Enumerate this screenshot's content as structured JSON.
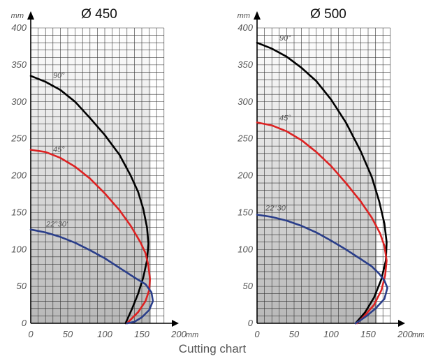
{
  "caption": "Cutting chart",
  "chart_data": [
    {
      "type": "line",
      "title": "Ø 450",
      "x_unit": "mm",
      "y_unit": "mm",
      "xlim": [
        0,
        200
      ],
      "ylim": [
        0,
        400
      ],
      "x_ticks": [
        "0",
        "50",
        "100",
        "150",
        "200"
      ],
      "y_ticks": [
        "0",
        "50",
        "100",
        "150",
        "200",
        "250",
        "300",
        "350",
        "400"
      ],
      "grid": true,
      "series": [
        {
          "name": "90°",
          "color": "#000000",
          "points": [
            [
              0,
              335
            ],
            [
              20,
              327
            ],
            [
              40,
              316
            ],
            [
              60,
              300
            ],
            [
              80,
              278
            ],
            [
              100,
              255
            ],
            [
              120,
              228
            ],
            [
              135,
              200
            ],
            [
              145,
              178
            ],
            [
              152,
              155
            ],
            [
              157,
              130
            ],
            [
              159,
              108
            ],
            [
              157,
              85
            ],
            [
              152,
              62
            ],
            [
              145,
              40
            ],
            [
              137,
              20
            ],
            [
              128,
              0
            ]
          ]
        },
        {
          "name": "45°",
          "color": "#dd2222",
          "points": [
            [
              0,
              235
            ],
            [
              20,
              232
            ],
            [
              40,
              224
            ],
            [
              60,
              212
            ],
            [
              80,
              196
            ],
            [
              100,
              176
            ],
            [
              120,
              153
            ],
            [
              135,
              132
            ],
            [
              148,
              110
            ],
            [
              155,
              95
            ],
            [
              159,
              78
            ],
            [
              161,
              60
            ],
            [
              160,
              45
            ],
            [
              155,
              30
            ],
            [
              145,
              15
            ],
            [
              135,
              5
            ],
            [
              130,
              0
            ]
          ]
        },
        {
          "name": "22°30'",
          "color": "#2a3e8a",
          "points": [
            [
              0,
              127
            ],
            [
              20,
              123
            ],
            [
              40,
              117
            ],
            [
              60,
              109
            ],
            [
              80,
              99
            ],
            [
              100,
              88
            ],
            [
              120,
              75
            ],
            [
              140,
              62
            ],
            [
              155,
              53
            ],
            [
              163,
              42
            ],
            [
              165,
              30
            ],
            [
              160,
              18
            ],
            [
              150,
              8
            ],
            [
              140,
              2
            ],
            [
              130,
              0
            ]
          ]
        }
      ]
    },
    {
      "type": "line",
      "title": "Ø 500",
      "x_unit": "mm",
      "y_unit": "mm",
      "xlim": [
        0,
        200
      ],
      "ylim": [
        0,
        400
      ],
      "x_ticks": [
        "0",
        "50",
        "100",
        "150",
        "200"
      ],
      "y_ticks": [
        "0",
        "50",
        "100",
        "150",
        "200",
        "250",
        "300",
        "350",
        "400"
      ],
      "grid": true,
      "series": [
        {
          "name": "90°",
          "color": "#000000",
          "points": [
            [
              0,
              380
            ],
            [
              20,
              372
            ],
            [
              40,
              361
            ],
            [
              60,
              346
            ],
            [
              80,
              328
            ],
            [
              100,
              303
            ],
            [
              120,
              272
            ],
            [
              140,
              233
            ],
            [
              155,
              198
            ],
            [
              165,
              165
            ],
            [
              172,
              135
            ],
            [
              175,
              110
            ],
            [
              174,
              85
            ],
            [
              168,
              60
            ],
            [
              158,
              35
            ],
            [
              146,
              15
            ],
            [
              133,
              0
            ]
          ]
        },
        {
          "name": "45°",
          "color": "#dd2222",
          "points": [
            [
              0,
              272
            ],
            [
              20,
              268
            ],
            [
              40,
              260
            ],
            [
              60,
              248
            ],
            [
              80,
              232
            ],
            [
              100,
              213
            ],
            [
              120,
              190
            ],
            [
              140,
              165
            ],
            [
              155,
              143
            ],
            [
              166,
              122
            ],
            [
              172,
              105
            ],
            [
              175,
              85
            ],
            [
              173,
              65
            ],
            [
              168,
              45
            ],
            [
              158,
              25
            ],
            [
              145,
              10
            ],
            [
              135,
              0
            ]
          ]
        },
        {
          "name": "22°30'",
          "color": "#2a3e8a",
          "points": [
            [
              0,
              147
            ],
            [
              20,
              144
            ],
            [
              40,
              139
            ],
            [
              60,
              132
            ],
            [
              80,
              123
            ],
            [
              100,
              112
            ],
            [
              120,
              100
            ],
            [
              140,
              87
            ],
            [
              155,
              77
            ],
            [
              165,
              67
            ],
            [
              172,
              58
            ],
            [
              176,
              48
            ],
            [
              172,
              33
            ],
            [
              160,
              20
            ],
            [
              148,
              10
            ],
            [
              138,
              3
            ],
            [
              133,
              0
            ]
          ]
        }
      ]
    }
  ]
}
